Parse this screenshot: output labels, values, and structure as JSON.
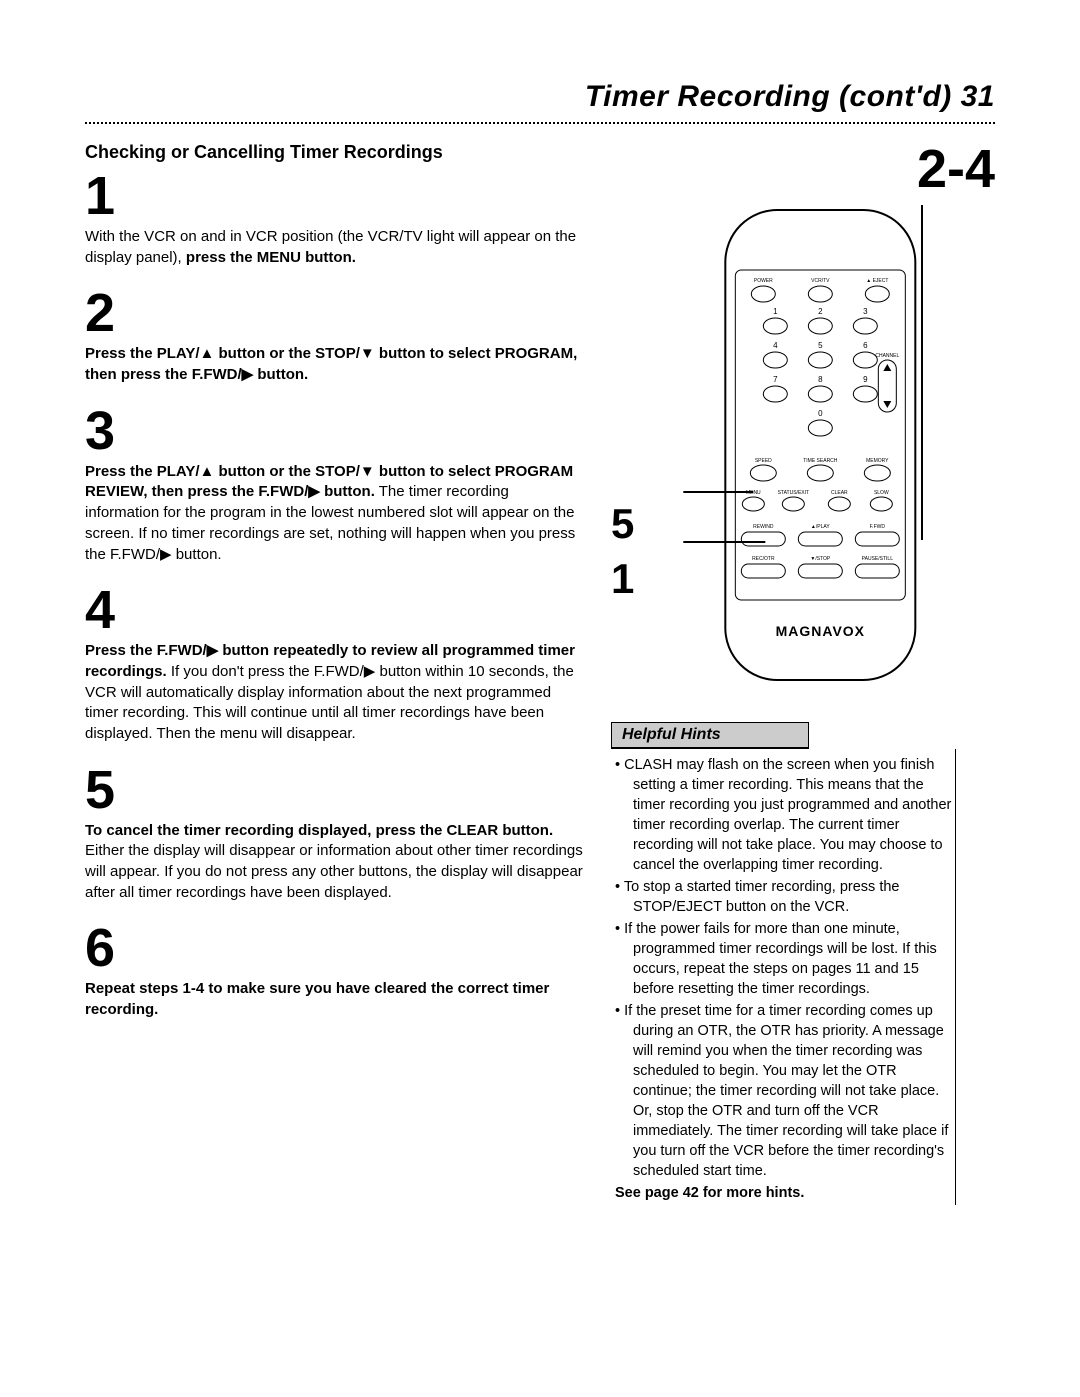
{
  "header": "Timer Recording (cont'd)  31",
  "section_title": "Checking or Cancelling Timer Recordings",
  "steps": [
    {
      "num": "1",
      "body": "With the VCR on and in VCR position (the VCR/TV light will appear on the display panel), <b>press the MENU button.</b>"
    },
    {
      "num": "2",
      "body": "<b>Press the PLAY/▲ button or the STOP/▼ button to select PROGRAM, then press the F.FWD/▶ button.</b>"
    },
    {
      "num": "3",
      "body": "<b>Press the PLAY/▲ button or the STOP/▼ button to select PROGRAM REVIEW, then press the F.FWD/▶ button.</b> The timer recording information for the program in the lowest numbered slot will appear on the screen. If no timer recordings are set, nothing will happen when you press the F.FWD/▶ button."
    },
    {
      "num": "4",
      "body": "<b>Press the F.FWD/▶ button repeatedly to review all programmed timer recordings.</b> If you don't press the F.FWD/▶ button within 10 seconds, the VCR will automatically display information about the next programmed timer recording. This will continue until all timer recordings have been displayed. Then the menu will disappear."
    },
    {
      "num": "5",
      "body": "<b>To cancel the timer recording displayed, press the CLEAR button.</b> Either the display will disappear or information about other timer recordings will appear. If you do not press any other buttons, the display will disappear after all timer recordings have been displayed."
    },
    {
      "num": "6",
      "body": "<b>Repeat steps 1-4 to make sure you have cleared the correct timer recording.</b>"
    }
  ],
  "callout_top": "2-4",
  "callout_side": [
    "5",
    "1"
  ],
  "remote": {
    "brand": "MAGNAVOX",
    "row1": [
      "POWER",
      "VCR/TV",
      "▲ EJECT"
    ],
    "nums": [
      "1",
      "2",
      "3",
      "4",
      "5",
      "6",
      "7",
      "8",
      "9",
      "0"
    ],
    "channel": "CHANNEL",
    "row_mid1": [
      "SPEED",
      "TIME SEARCH",
      "MEMORY"
    ],
    "row_mid2": [
      "MENU",
      "STATUS/EXIT",
      "CLEAR",
      "SLOW"
    ],
    "row_play": [
      "REWIND",
      "▲/PLAY",
      "F.FWD"
    ],
    "row_stop": [
      "REC/OTR",
      "▼/STOP",
      "PAUSE/STILL"
    ]
  },
  "hints": {
    "title": "Helpful Hints",
    "items": [
      "CLASH may flash on the screen when you finish setting a timer recording. This means that the timer recording you just programmed and another timer recording overlap. The current timer recording will not take place. You may choose to cancel the overlapping timer recording.",
      "To stop a started timer recording, press the STOP/EJECT button on the VCR.",
      "If the power fails for more than one minute, programmed timer recordings will be lost. If this occurs, repeat the steps on pages 11 and 15 before resetting the timer recordings.",
      "If the preset time for a timer recording comes up during an OTR, the OTR has priority. A message will remind you when the timer recording was scheduled to begin. You may let the OTR continue; the timer recording will not take place. Or, stop the OTR and turn off the VCR immediately. The timer recording will take place if you turn off the VCR before the timer recording's scheduled start time."
    ],
    "footer": "See page 42 for more hints."
  }
}
